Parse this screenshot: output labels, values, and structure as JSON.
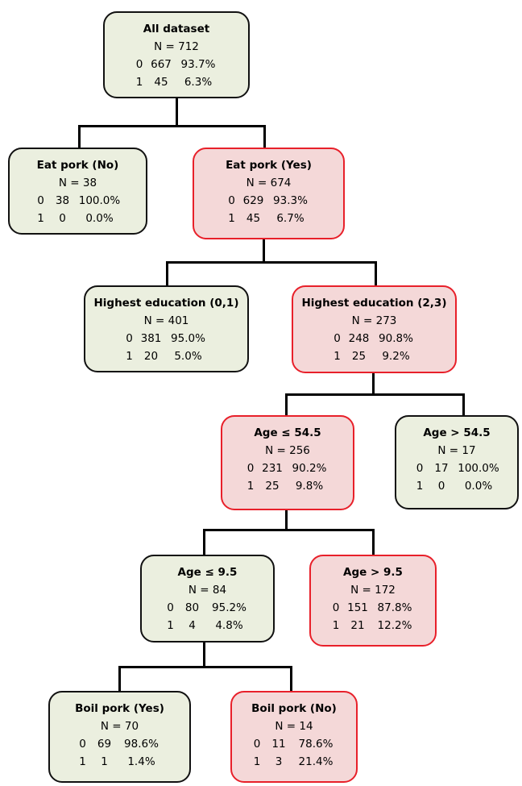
{
  "colors": {
    "green_fill": "#ebefdf",
    "green_border": "#111111",
    "red_fill": "#f4d8d8",
    "red_border": "#e8202a",
    "connector": "#000000"
  },
  "nodes": {
    "root": {
      "title": "All dataset",
      "n": "N = 712",
      "rows": [
        [
          "0",
          "667",
          "93.7%"
        ],
        [
          "1",
          "45",
          "6.3%"
        ]
      ],
      "style": "green"
    },
    "eat_no": {
      "title": "Eat pork (No)",
      "n": "N = 38",
      "rows": [
        [
          "0",
          "38",
          "100.0%"
        ],
        [
          "1",
          "0",
          "0.0%"
        ]
      ],
      "style": "green"
    },
    "eat_yes": {
      "title": "Eat pork (Yes)",
      "n": "N = 674",
      "rows": [
        [
          "0",
          "629",
          "93.3%"
        ],
        [
          "1",
          "45",
          "6.7%"
        ]
      ],
      "style": "red"
    },
    "edu_01": {
      "title": "Highest education (0,1)",
      "n": "N = 401",
      "rows": [
        [
          "0",
          "381",
          "95.0%"
        ],
        [
          "1",
          "20",
          "5.0%"
        ]
      ],
      "style": "green"
    },
    "edu_23": {
      "title": "Highest education (2,3)",
      "n": "N = 273",
      "rows": [
        [
          "0",
          "248",
          "90.8%"
        ],
        [
          "1",
          "25",
          "9.2%"
        ]
      ],
      "style": "red"
    },
    "age_le_545": {
      "title": "Age ≤ 54.5",
      "n": "N = 256",
      "rows": [
        [
          "0",
          "231",
          "90.2%"
        ],
        [
          "1",
          "25",
          "9.8%"
        ]
      ],
      "style": "red"
    },
    "age_gt_545": {
      "title": "Age > 54.5",
      "n": "N = 17",
      "rows": [
        [
          "0",
          "17",
          "100.0%"
        ],
        [
          "1",
          "0",
          "0.0%"
        ]
      ],
      "style": "green"
    },
    "age_le_95": {
      "title": "Age ≤ 9.5",
      "n": "N = 84",
      "rows": [
        [
          "0",
          "80",
          "95.2%"
        ],
        [
          "1",
          "4",
          "4.8%"
        ]
      ],
      "style": "green"
    },
    "age_gt_95": {
      "title": "Age > 9.5",
      "n": "N = 172",
      "rows": [
        [
          "0",
          "151",
          "87.8%"
        ],
        [
          "1",
          "21",
          "12.2%"
        ]
      ],
      "style": "red"
    },
    "boil_yes": {
      "title": "Boil pork (Yes)",
      "n": "N = 70",
      "rows": [
        [
          "0",
          "69",
          "98.6%"
        ],
        [
          "1",
          "1",
          "1.4%"
        ]
      ],
      "style": "green"
    },
    "boil_no": {
      "title": "Boil pork (No)",
      "n": "N = 14",
      "rows": [
        [
          "0",
          "11",
          "78.6%"
        ],
        [
          "1",
          "3",
          "21.4%"
        ]
      ],
      "style": "red"
    }
  }
}
